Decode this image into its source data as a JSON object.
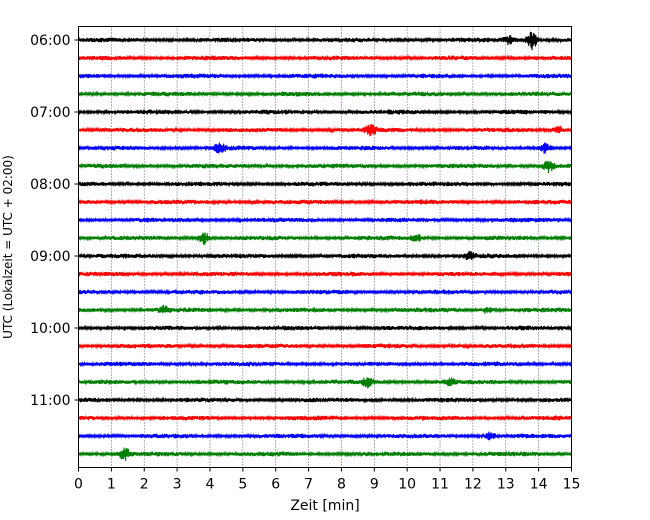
{
  "chart_data": {
    "type": "line",
    "title": "",
    "xlabel": "Zeit  [min]",
    "ylabel": "UTC (Lokalzeit = UTC + 02:00)",
    "xlim": [
      0,
      15
    ],
    "xticks": [
      0,
      1,
      2,
      3,
      4,
      5,
      6,
      7,
      8,
      9,
      10,
      11,
      12,
      13,
      14,
      15
    ],
    "x_grid": true,
    "ytick_labels": [
      "06:00",
      "07:00",
      "08:00",
      "09:00",
      "10:00",
      "11:00"
    ],
    "trace_start": "06:00",
    "trace_interval_min": 15,
    "trace_count": 24,
    "colors": [
      "#000000",
      "#ff0000",
      "#0000ff",
      "#008000"
    ],
    "events": [
      {
        "trace": 0,
        "minute": 13.8,
        "amplitude": 2.4
      },
      {
        "trace": 0,
        "minute": 13.1,
        "amplitude": 1.1
      },
      {
        "trace": 5,
        "minute": 8.9,
        "amplitude": 1.2
      },
      {
        "trace": 5,
        "minute": 14.6,
        "amplitude": 1.0
      },
      {
        "trace": 6,
        "minute": 4.3,
        "amplitude": 1.1
      },
      {
        "trace": 6,
        "minute": 14.2,
        "amplitude": 1.3
      },
      {
        "trace": 7,
        "minute": 14.3,
        "amplitude": 1.4
      },
      {
        "trace": 11,
        "minute": 3.8,
        "amplitude": 1.6
      },
      {
        "trace": 11,
        "minute": 10.3,
        "amplitude": 0.9
      },
      {
        "trace": 12,
        "minute": 11.9,
        "amplitude": 0.9
      },
      {
        "trace": 15,
        "minute": 2.6,
        "amplitude": 0.8
      },
      {
        "trace": 15,
        "minute": 12.4,
        "amplitude": 0.8
      },
      {
        "trace": 19,
        "minute": 8.8,
        "amplitude": 1.2
      },
      {
        "trace": 19,
        "minute": 11.3,
        "amplitude": 0.9
      },
      {
        "trace": 22,
        "minute": 12.5,
        "amplitude": 1.1
      },
      {
        "trace": 23,
        "minute": 1.4,
        "amplitude": 1.5
      }
    ]
  }
}
